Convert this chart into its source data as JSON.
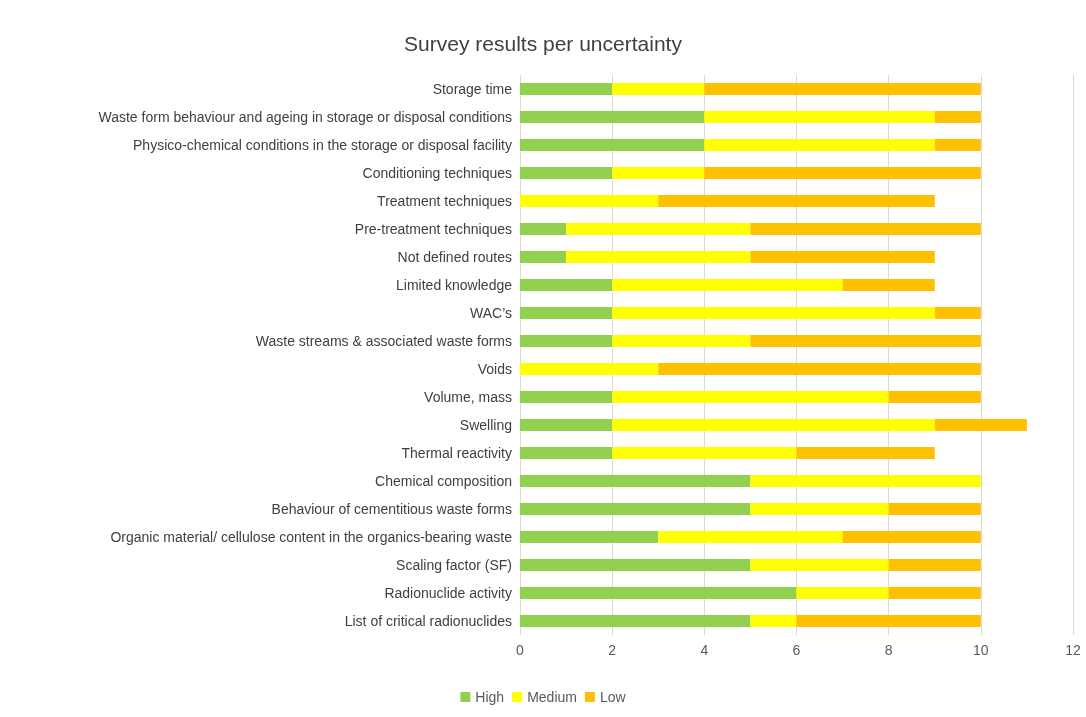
{
  "chart_data": {
    "type": "bar",
    "orientation": "horizontal",
    "stacked": true,
    "title": "Survey results per uncertainty",
    "categories": [
      "Storage time",
      "Waste form behaviour and ageing in storage or disposal conditions",
      "Physico-chemical conditions in the storage or disposal facility",
      "Conditioning techniques",
      "Treatment techniques",
      "Pre-treatment techniques",
      "Not defined routes",
      "Limited knowledge",
      "WAC’s",
      "Waste streams & associated waste forms",
      "Voids",
      "Volume, mass",
      "Swelling",
      "Thermal reactivity",
      "Chemical composition",
      "Behaviour of cementitious waste forms",
      "Organic material/ cellulose content in the organics-bearing waste",
      "Scaling factor (SF)",
      "Radionuclide activity",
      "List of critical radionuclides"
    ],
    "series": [
      {
        "name": "High",
        "color": "#92d050",
        "values": [
          2,
          4,
          4,
          2,
          0,
          1,
          1,
          2,
          2,
          2,
          0,
          2,
          2,
          2,
          5,
          5,
          3,
          5,
          6,
          5
        ]
      },
      {
        "name": "Medium",
        "color": "#ffff00",
        "values": [
          2,
          5,
          5,
          2,
          3,
          4,
          4,
          5,
          7,
          3,
          3,
          6,
          7,
          4,
          5,
          3,
          4,
          3,
          2,
          1
        ]
      },
      {
        "name": "Low",
        "color": "#ffc000",
        "values": [
          6,
          1,
          1,
          6,
          6,
          5,
          4,
          2,
          1,
          5,
          7,
          2,
          2,
          3,
          0,
          2,
          3,
          2,
          2,
          4
        ]
      }
    ],
    "xlim": [
      0,
      12
    ],
    "xticks": [
      0,
      2,
      4,
      6,
      8,
      10,
      12
    ],
    "grid": "x",
    "legend": "bottom"
  }
}
